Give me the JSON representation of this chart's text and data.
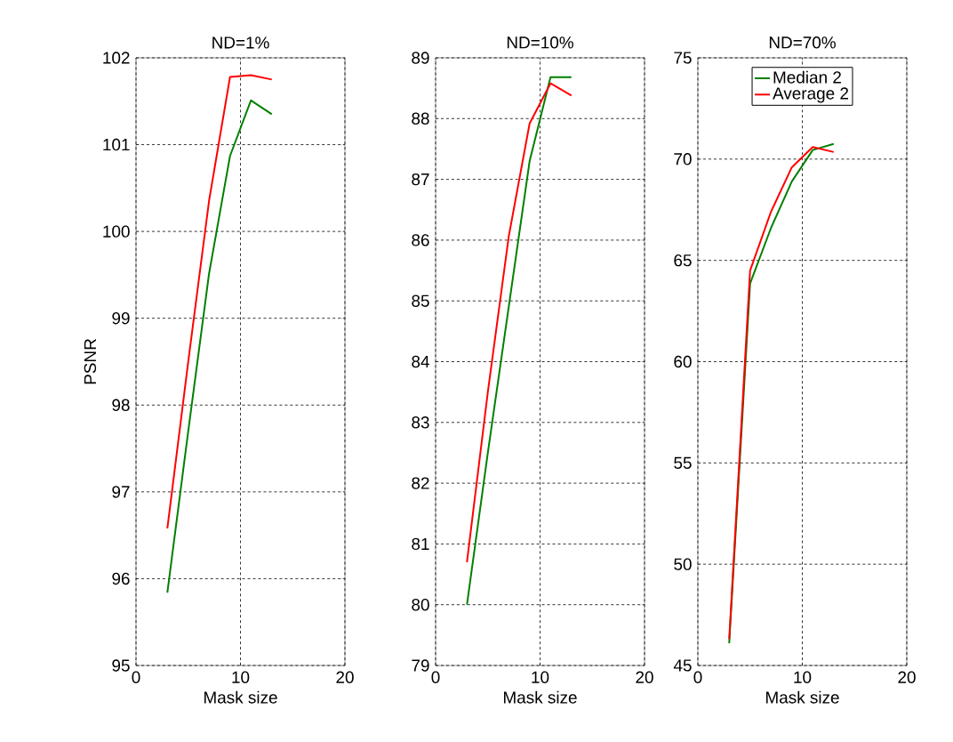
{
  "chart_data": [
    {
      "type": "line",
      "title": "ND=1%",
      "xlabel": "Mask size",
      "ylabel": "PSNR",
      "x": [
        3,
        5,
        7,
        9,
        11,
        13
      ],
      "xlim": [
        0,
        20
      ],
      "ylim": [
        95,
        102
      ],
      "xticks": [
        0,
        10,
        20
      ],
      "yticks": [
        95,
        96,
        97,
        98,
        99,
        100,
        101,
        102
      ],
      "grid": true,
      "series": [
        {
          "color": "#008000",
          "values": [
            95.84,
            97.7,
            99.52,
            100.87,
            101.51,
            101.35
          ]
        },
        {
          "color": "#ff0000",
          "values": [
            96.58,
            98.5,
            100.36,
            101.78,
            101.8,
            101.75
          ]
        }
      ]
    },
    {
      "type": "line",
      "title": "ND=10%",
      "xlabel": "Mask size",
      "x": [
        3,
        5,
        7,
        9,
        11,
        13
      ],
      "xlim": [
        0,
        20
      ],
      "ylim": [
        79,
        89
      ],
      "xticks": [
        0,
        10,
        20
      ],
      "yticks": [
        79,
        80,
        81,
        82,
        83,
        84,
        85,
        86,
        87,
        88,
        89
      ],
      "grid": true,
      "series": [
        {
          "color": "#008000",
          "values": [
            80.0,
            82.5,
            84.9,
            87.3,
            88.68,
            88.68
          ]
        },
        {
          "color": "#ff0000",
          "values": [
            80.7,
            83.5,
            86.06,
            87.92,
            88.58,
            88.38
          ]
        }
      ]
    },
    {
      "type": "line",
      "title": "ND=70%",
      "xlabel": "Mask size",
      "x": [
        3,
        5,
        7,
        9,
        11,
        13
      ],
      "xlim": [
        0,
        20
      ],
      "ylim": [
        45,
        75
      ],
      "xticks": [
        0,
        10,
        20
      ],
      "yticks": [
        45,
        50,
        55,
        60,
        65,
        70,
        75
      ],
      "grid": true,
      "legend": "top",
      "series": [
        {
          "name": "Median 2",
          "color": "#008000",
          "values": [
            46.1,
            63.86,
            66.6,
            68.9,
            70.45,
            70.75
          ]
        },
        {
          "name": "Average 2",
          "color": "#ff0000",
          "values": [
            46.3,
            64.5,
            67.4,
            69.6,
            70.6,
            70.35
          ]
        }
      ]
    }
  ]
}
